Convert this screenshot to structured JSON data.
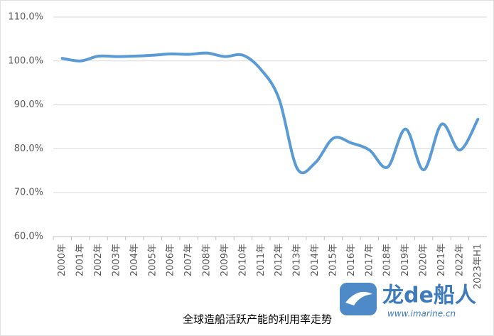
{
  "chart_data": {
    "type": "line",
    "title": "全球造船活跃产能的利用率走势",
    "categories": [
      "2000年",
      "2001年",
      "2002年",
      "2003年",
      "2004年",
      "2005年",
      "2006年",
      "2007年",
      "2008年",
      "2009年",
      "2010年",
      "2011年",
      "2012年",
      "2013年",
      "2014年",
      "2015年",
      "2016年",
      "2017年",
      "2018年",
      "2019年",
      "2020年",
      "2021年",
      "2022年",
      "2023年H1"
    ],
    "series": [
      {
        "color": "#5b9bd5",
        "values": [
          100.6,
          100.0,
          101.1,
          101.0,
          101.1,
          101.3,
          101.6,
          101.5,
          101.8,
          101.0,
          101.3,
          98.0,
          91.3,
          75.5,
          76.8,
          82.4,
          81.3,
          79.7,
          75.8,
          84.5,
          75.2,
          85.6,
          79.7,
          86.7
        ]
      }
    ],
    "ylim": [
      60,
      110
    ],
    "yticks": [
      {
        "value": 60,
        "label": "60.0%"
      },
      {
        "value": 70,
        "label": "70.0%"
      },
      {
        "value": 80,
        "label": "80.0%"
      },
      {
        "value": 90,
        "label": "90.0%"
      },
      {
        "value": 100,
        "label": "100.0%"
      },
      {
        "value": 110,
        "label": "110.0%"
      }
    ],
    "grid": true,
    "smooth": true,
    "watermark": {
      "brand": "龙de船人",
      "url": "www.imarine.cn"
    }
  }
}
